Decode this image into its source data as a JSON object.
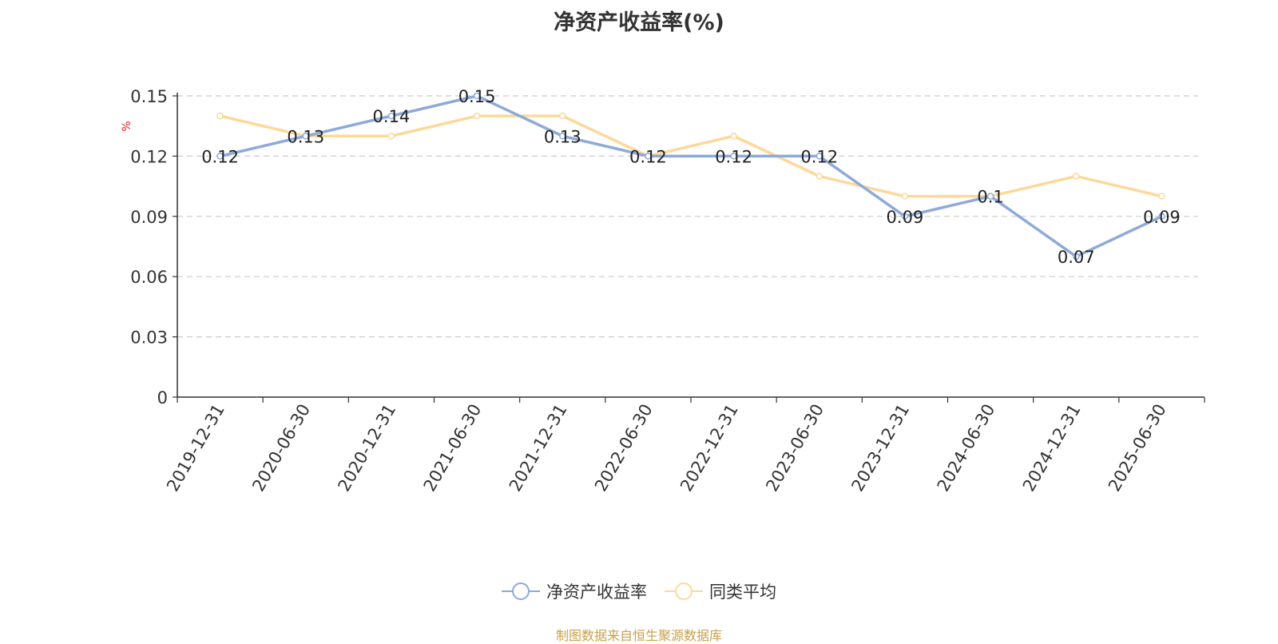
{
  "chart_data": {
    "type": "line",
    "title": "净资产收益率(%)",
    "ylabel": "%",
    "categories": [
      "2019-12-31",
      "2020-06-30",
      "2020-12-31",
      "2021-06-30",
      "2021-12-31",
      "2022-06-30",
      "2022-12-31",
      "2023-06-30",
      "2023-12-31",
      "2024-06-30",
      "2024-12-31",
      "2025-06-30"
    ],
    "ylim": [
      0,
      0.15
    ],
    "yticks": [
      "0",
      "0.03",
      "0.06",
      "0.09",
      "0.12",
      "0.15"
    ],
    "grid": true,
    "legend_position": "bottom",
    "series": [
      {
        "name": "净资产收益率",
        "color": "#8eaad8",
        "values": [
          0.12,
          0.13,
          0.14,
          0.15,
          0.13,
          0.12,
          0.12,
          0.12,
          0.09,
          0.1,
          0.07,
          0.09
        ],
        "labels": [
          "0.12",
          "0.13",
          "0.14",
          "0.15",
          "0.13",
          "0.12",
          "0.12",
          "0.12",
          "0.09",
          "0.1",
          "0.07",
          "0.09"
        ]
      },
      {
        "name": "同类平均",
        "color": "#fcd99a",
        "values": [
          0.14,
          0.13,
          0.13,
          0.14,
          0.14,
          0.12,
          0.13,
          0.11,
          0.1,
          0.1,
          0.11,
          0.1
        ]
      }
    ]
  },
  "source": "制图数据来自恒生聚源数据库"
}
